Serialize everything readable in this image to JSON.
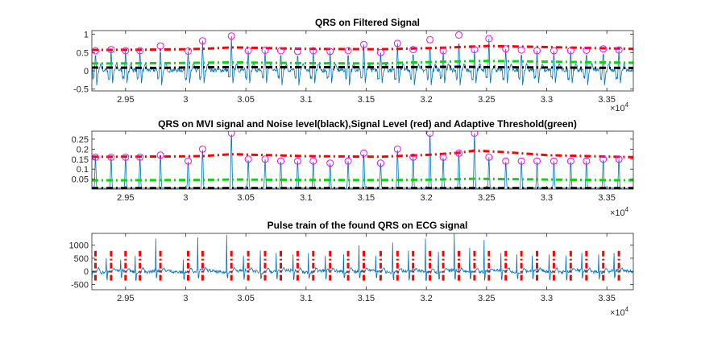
{
  "colors": {
    "signal": "#0072BD",
    "signal_level": "#FF0000",
    "noise_level": "#000000",
    "threshold": "#00DD00",
    "peak_marker": "#FF00FF",
    "axes": "#262626",
    "background": "#FFFFFF"
  },
  "chart_data": [
    {
      "type": "line",
      "title": "QRS on Filtered Signal",
      "xlabel": "",
      "ylabel": "",
      "xlim": [
        29220,
        33720
      ],
      "ylim": [
        -0.55,
        1.1
      ],
      "x_ticks": [
        29500,
        30000,
        30500,
        31000,
        31500,
        32000,
        32500,
        33000,
        33500
      ],
      "x_tick_labels": [
        "2.95",
        "3",
        "3.05",
        "3.1",
        "3.15",
        "3.2",
        "3.25",
        "3.3",
        "3.35"
      ],
      "x_exponent_label": "×10^4",
      "y_ticks": [
        -0.5,
        0,
        0.5,
        1
      ],
      "y_tick_labels": [
        "-0.5",
        "0",
        "0.5",
        "1"
      ],
      "grid": false,
      "peaks_x": [
        29250,
        29380,
        29500,
        29620,
        29790,
        30020,
        30140,
        30380,
        30520,
        30660,
        30790,
        30930,
        31060,
        31200,
        31350,
        31480,
        31620,
        31760,
        31890,
        32030,
        32140,
        32270,
        32400,
        32520,
        32660,
        32790,
        32920,
        33060,
        33200,
        33330,
        33470,
        33600
      ],
      "peaks_y": [
        0.55,
        0.58,
        0.55,
        0.55,
        0.68,
        0.54,
        0.82,
        0.95,
        0.55,
        0.56,
        0.55,
        0.53,
        0.55,
        0.53,
        0.55,
        0.72,
        0.5,
        0.75,
        0.58,
        0.85,
        0.55,
        0.98,
        0.58,
        0.88,
        0.6,
        0.57,
        0.55,
        0.55,
        0.55,
        0.56,
        0.6,
        0.57
      ],
      "signal_level": {
        "x": [
          29220,
          29790,
          30140,
          30380,
          31000,
          31620,
          31760,
          32030,
          32270,
          32520,
          33000,
          33720
        ],
        "y": [
          0.57,
          0.58,
          0.6,
          0.64,
          0.6,
          0.59,
          0.6,
          0.62,
          0.65,
          0.68,
          0.65,
          0.6
        ]
      },
      "noise_level": {
        "x": [
          29220,
          29790,
          30140,
          31000,
          31760,
          32270,
          32520,
          33000,
          33720
        ],
        "y": [
          0.09,
          0.08,
          0.1,
          0.1,
          0.1,
          0.11,
          0.1,
          0.09,
          0.08
        ]
      },
      "threshold": {
        "x": [
          29220,
          29790,
          30140,
          30380,
          31000,
          31620,
          31760,
          32030,
          32270,
          32520,
          33000,
          33720
        ],
        "y": [
          0.2,
          0.21,
          0.22,
          0.23,
          0.21,
          0.2,
          0.22,
          0.24,
          0.26,
          0.27,
          0.25,
          0.22
        ]
      }
    },
    {
      "type": "line",
      "title": "QRS on MVI signal and Noise level(black),Signal Level (red) and Adaptive Threshold(green)",
      "xlabel": "",
      "ylabel": "",
      "xlim": [
        29220,
        33720
      ],
      "ylim": [
        0,
        0.29
      ],
      "x_ticks": [
        29500,
        30000,
        30500,
        31000,
        31500,
        32000,
        32500,
        33000,
        33500
      ],
      "x_tick_labels": [
        "2.95",
        "3",
        "3.05",
        "3.1",
        "3.15",
        "3.2",
        "3.25",
        "3.3",
        "3.35"
      ],
      "x_exponent_label": "×10^4",
      "y_ticks": [
        0.05,
        0.1,
        0.15,
        0.2,
        0.25
      ],
      "y_tick_labels": [
        "0.05",
        "0.1",
        "0.15",
        "0.2",
        "0.25"
      ],
      "grid": false,
      "peaks_x": [
        29250,
        29380,
        29500,
        29620,
        29790,
        30020,
        30140,
        30380,
        30520,
        30660,
        30790,
        30930,
        31060,
        31200,
        31350,
        31480,
        31620,
        31760,
        31890,
        32030,
        32140,
        32270,
        32400,
        32520,
        32660,
        32790,
        32920,
        33060,
        33200,
        33330,
        33470,
        33600
      ],
      "peaks_y": [
        0.16,
        0.16,
        0.16,
        0.16,
        0.17,
        0.14,
        0.2,
        0.28,
        0.15,
        0.15,
        0.14,
        0.14,
        0.14,
        0.13,
        0.14,
        0.18,
        0.13,
        0.2,
        0.16,
        0.28,
        0.16,
        0.18,
        0.28,
        0.16,
        0.14,
        0.14,
        0.14,
        0.14,
        0.14,
        0.14,
        0.15,
        0.15
      ],
      "signal_level": {
        "x": [
          29220,
          29790,
          30140,
          30380,
          31000,
          31620,
          32030,
          32270,
          32400,
          32660,
          33000,
          33720
        ],
        "y": [
          0.162,
          0.163,
          0.165,
          0.175,
          0.165,
          0.162,
          0.172,
          0.182,
          0.193,
          0.185,
          0.17,
          0.16
        ]
      },
      "noise_level": {
        "x": [
          29220,
          33720
        ],
        "y": [
          0.005,
          0.005
        ]
      },
      "threshold": {
        "x": [
          29220,
          29790,
          30140,
          30380,
          31000,
          31620,
          32030,
          32270,
          32400,
          32660,
          33000,
          33720
        ],
        "y": [
          0.044,
          0.045,
          0.046,
          0.048,
          0.046,
          0.045,
          0.047,
          0.05,
          0.052,
          0.05,
          0.048,
          0.044
        ]
      }
    },
    {
      "type": "line",
      "title": "Pulse train of the found QRS on ECG signal",
      "xlabel": "",
      "ylabel": "",
      "xlim": [
        29220,
        33720
      ],
      "ylim": [
        -700,
        1450
      ],
      "x_ticks": [
        29500,
        30000,
        30500,
        31000,
        31500,
        32000,
        32500,
        33000,
        33500
      ],
      "x_tick_labels": [
        "2.95",
        "3",
        "3.05",
        "3.1",
        "3.15",
        "3.2",
        "3.25",
        "3.3",
        "3.35"
      ],
      "x_exponent_label": "×10^4",
      "y_ticks": [
        -500,
        0,
        500,
        1000
      ],
      "y_tick_labels": [
        "-500",
        "0",
        "500",
        "1000"
      ],
      "grid": false,
      "pulse_x": [
        29250,
        29380,
        29500,
        29620,
        29790,
        30020,
        30140,
        30380,
        30520,
        30660,
        30790,
        30930,
        31060,
        31200,
        31350,
        31480,
        31620,
        31760,
        31890,
        32030,
        32140,
        32270,
        32400,
        32520,
        32660,
        32790,
        32920,
        33060,
        33200,
        33330,
        33470,
        33600
      ],
      "pulse_range": [
        -350,
        780
      ],
      "ecg_peak_y": [
        400,
        500,
        450,
        600,
        1250,
        450,
        1300,
        1400,
        600,
        800,
        700,
        650,
        700,
        600,
        650,
        1000,
        600,
        1100,
        800,
        1250,
        750,
        1450,
        900,
        1200,
        700,
        650,
        600,
        650,
        600,
        700,
        650,
        700
      ]
    }
  ]
}
